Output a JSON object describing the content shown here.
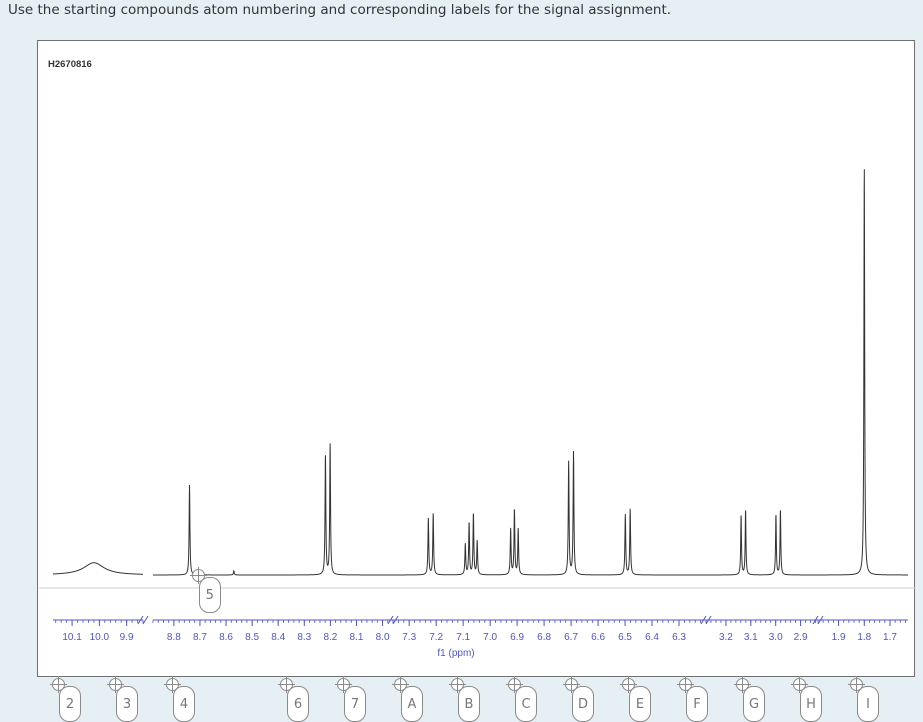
{
  "instruction": "Use the starting compounds atom numbering and corresponding labels for the signal assignment.",
  "colors": {
    "spectrum_line": "#333333",
    "axis": "#5055c5",
    "chip_border": "#8a8a8a",
    "background": "#e6eff3"
  },
  "chart_data": {
    "type": "line",
    "title": "H2670816",
    "xlabel": "f1 (ppm)",
    "x_reversed": true,
    "x_segments": [
      {
        "ticks": [
          "10.1",
          "10.0",
          "9.9"
        ]
      },
      {
        "ticks": [
          "8.8",
          "8.7",
          "8.6",
          "8.5",
          "8.4",
          "8.3",
          "8.2",
          "8.1",
          "8.0"
        ]
      },
      {
        "ticks": [
          "7.3",
          "7.2",
          "7.1",
          "7.0",
          "6.9",
          "6.8",
          "6.7",
          "6.6",
          "6.5",
          "6.4",
          "6.3"
        ]
      },
      {
        "ticks": [
          "3.2",
          "3.1",
          "3.0",
          "2.9"
        ]
      },
      {
        "ticks": [
          "1.9",
          "1.8",
          "1.7"
        ]
      }
    ],
    "peaks": [
      {
        "ppm": 10.02,
        "rel_height": 0.03,
        "shape": "broad"
      },
      {
        "ppm": 8.74,
        "rel_height": 0.22,
        "shape": "singlet"
      },
      {
        "ppm": 8.57,
        "rel_height": 0.01,
        "shape": "singlet"
      },
      {
        "ppm": 8.21,
        "rel_height": 0.32,
        "shape": "doublet"
      },
      {
        "ppm": 7.22,
        "rel_height": 0.15,
        "shape": "doublet"
      },
      {
        "ppm": 7.07,
        "rel_height": 0.15,
        "shape": "multiplet"
      },
      {
        "ppm": 6.91,
        "rel_height": 0.16,
        "shape": "triplet"
      },
      {
        "ppm": 6.7,
        "rel_height": 0.3,
        "shape": "doublet"
      },
      {
        "ppm": 6.49,
        "rel_height": 0.16,
        "shape": "doublet"
      },
      {
        "ppm": 3.13,
        "rel_height": 0.16,
        "shape": "doublet"
      },
      {
        "ppm": 2.99,
        "rel_height": 0.16,
        "shape": "doublet"
      },
      {
        "ppm": 1.8,
        "rel_height": 1.0,
        "shape": "singlet"
      }
    ]
  },
  "labels": {
    "placed": [
      {
        "text": "5"
      }
    ],
    "tray": [
      {
        "text": "2"
      },
      {
        "text": "3"
      },
      {
        "text": "4"
      },
      {
        "text": "6"
      },
      {
        "text": "7"
      },
      {
        "text": "A"
      },
      {
        "text": "B"
      },
      {
        "text": "C"
      },
      {
        "text": "D"
      },
      {
        "text": "E"
      },
      {
        "text": "F"
      },
      {
        "text": "G"
      },
      {
        "text": "H"
      },
      {
        "text": "I"
      }
    ]
  }
}
